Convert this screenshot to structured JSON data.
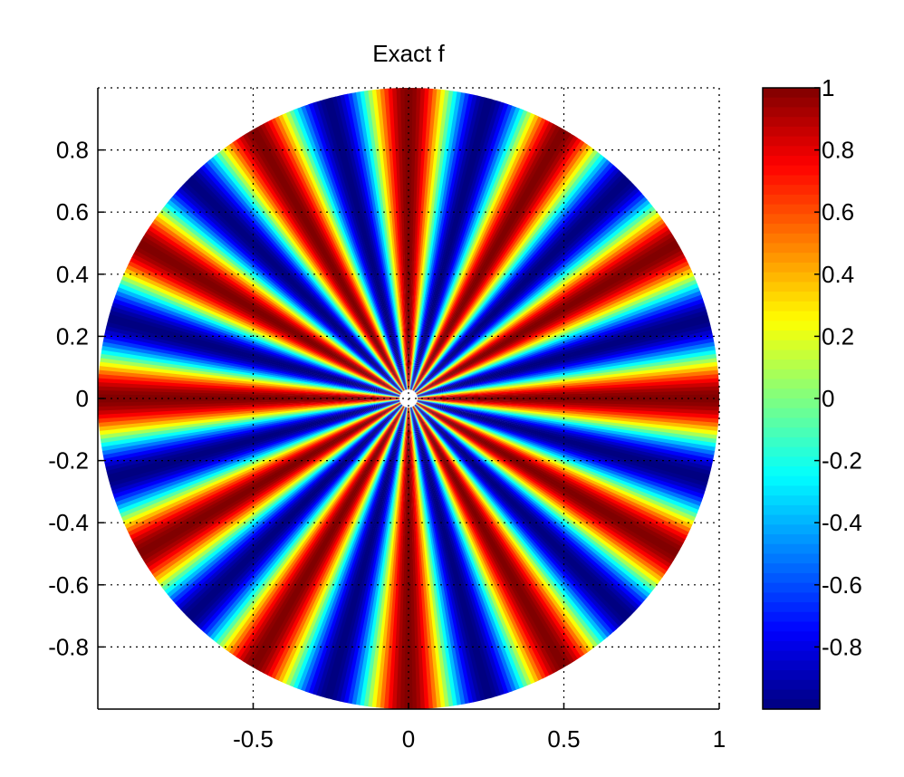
{
  "chart_data": {
    "type": "heatmap",
    "title": "Exact f",
    "xlabel": "",
    "ylabel": "",
    "xlim": [
      -1,
      1
    ],
    "ylim": [
      -1,
      1
    ],
    "domain": "unit disk",
    "function": "f = cos(k·θ), k = 12 (angular polar pattern over unit disk)",
    "angular_frequency": 12,
    "x_ticks": [
      "-0.5",
      "0",
      "0.5",
      "1"
    ],
    "x_tick_values": [
      -0.5,
      0,
      0.5,
      1
    ],
    "y_ticks": [
      "0.8",
      "0.6",
      "0.4",
      "0.2",
      "0",
      "-0.2",
      "-0.4",
      "-0.6",
      "-0.8"
    ],
    "y_tick_values": [
      0.8,
      0.6,
      0.4,
      0.2,
      0,
      -0.2,
      -0.4,
      -0.6,
      -0.8
    ],
    "grid": true,
    "colormap": "jet",
    "colorbar": {
      "range": [
        -1,
        1
      ],
      "ticks": [
        "1",
        "0.8",
        "0.6",
        "0.4",
        "0.2",
        "0",
        "-0.2",
        "-0.4",
        "-0.6",
        "-0.8"
      ],
      "tick_values": [
        1,
        0.8,
        0.6,
        0.4,
        0.2,
        0,
        -0.2,
        -0.4,
        -0.6,
        -0.8
      ]
    }
  }
}
